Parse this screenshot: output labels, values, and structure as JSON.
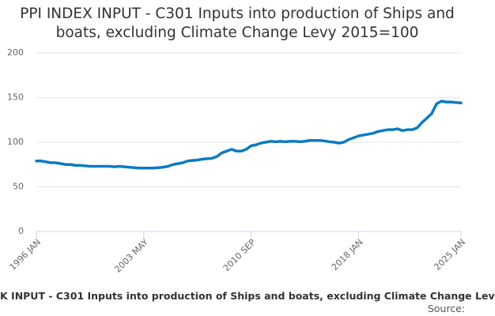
{
  "chart_data": {
    "type": "line",
    "title": "PPI INDEX INPUT - C301 Inputs into production of Ships and boats, excluding Climate Change Levy 2015=100",
    "caption": "K INPUT - C301 Inputs into production of Ships and boats, excluding Climate Change Lev",
    "source": "Source:",
    "categories": [
      "1996 JAN",
      null,
      null,
      null,
      null,
      null,
      null,
      null,
      null,
      null,
      null,
      null,
      null,
      null,
      null,
      null,
      null,
      null,
      null,
      null,
      null,
      null,
      "2003 MAY",
      null,
      null,
      null,
      null,
      null,
      null,
      null,
      null,
      null,
      null,
      null,
      null,
      null,
      null,
      null,
      null,
      null,
      null,
      null,
      null,
      null,
      "2010 SEP",
      null,
      null,
      null,
      null,
      null,
      null,
      null,
      null,
      null,
      null,
      null,
      null,
      null,
      null,
      null,
      null,
      null,
      null,
      null,
      null,
      null,
      "2018 JAN",
      null,
      null,
      null,
      null,
      null,
      null,
      null,
      null,
      null,
      null,
      null,
      null,
      null,
      null,
      null,
      null,
      null,
      null,
      null,
      null,
      "2025 JAN"
    ],
    "series": [
      {
        "name": "PPI INDEX INPUT - C301 Inputs into production of Ships and boats, excluding Climate Change Levy 2015=100",
        "color": "#0d7bc0",
        "values": [
          79,
          79,
          78,
          77,
          77,
          76,
          75,
          75,
          74,
          74,
          73.5,
          73,
          73,
          73,
          73,
          73,
          72.5,
          73,
          72.5,
          72,
          71.5,
          71,
          71,
          71,
          71,
          71.5,
          72,
          73,
          75,
          76,
          77,
          79,
          79.5,
          80,
          81,
          81.5,
          82,
          84,
          88,
          90,
          92,
          90,
          90,
          92,
          96,
          97,
          99,
          100,
          101,
          100.5,
          101,
          100.5,
          101,
          101,
          100.5,
          101,
          102,
          102,
          102,
          101.5,
          100.5,
          100,
          99,
          100,
          103,
          105,
          107,
          108,
          109,
          110,
          112,
          113,
          114,
          114,
          115,
          113,
          114,
          114,
          116,
          122,
          127,
          132,
          143,
          146,
          145,
          145,
          144.5,
          144
        ]
      }
    ],
    "ylim": [
      0,
      200
    ],
    "yticks": [
      0,
      50,
      100,
      150,
      200
    ],
    "grid": true
  }
}
